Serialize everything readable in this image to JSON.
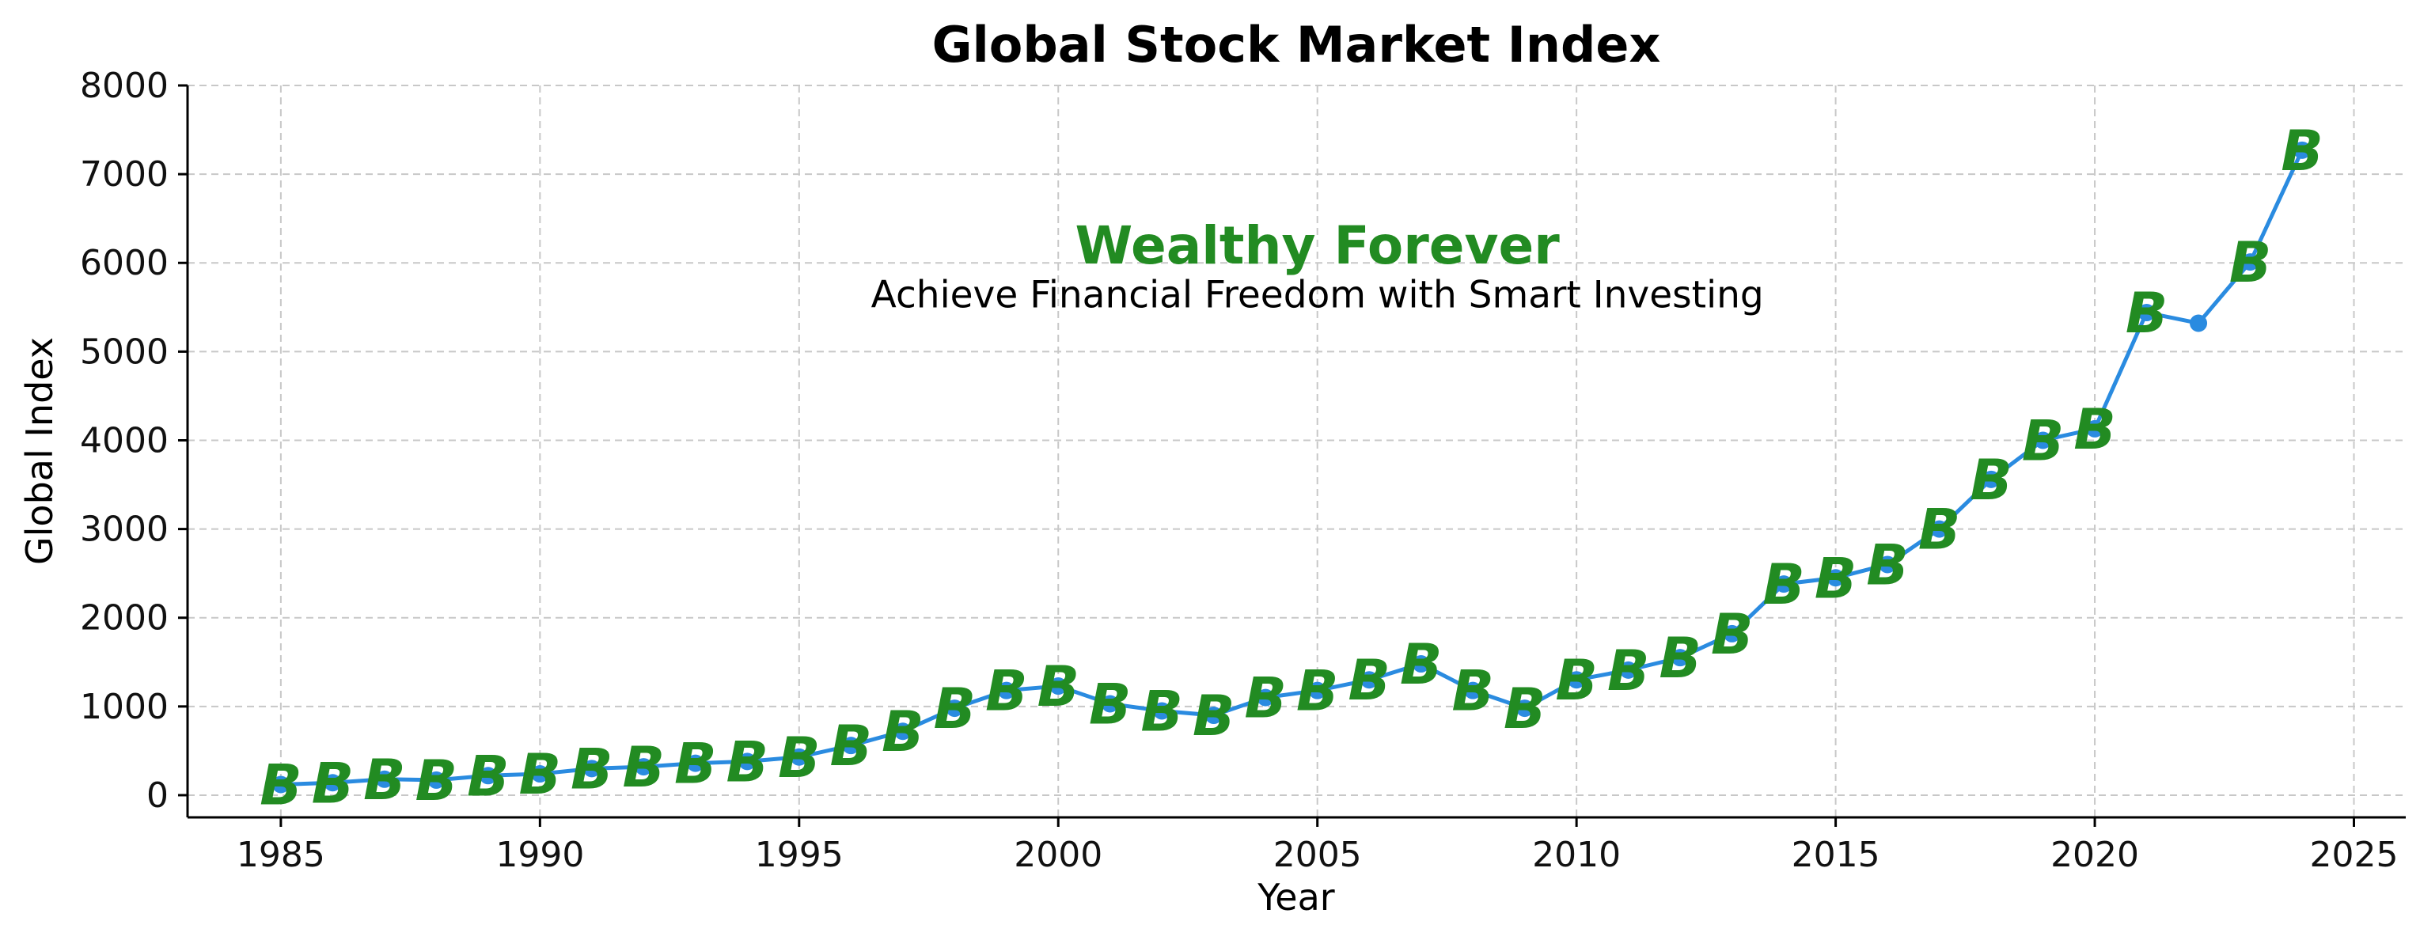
{
  "chart_data": {
    "type": "line",
    "title": "Global Stock Market Index",
    "xlabel": "Year",
    "ylabel": "Global Index",
    "xlim": [
      1983.2,
      2026
    ],
    "ylim": [
      -250,
      8000
    ],
    "xticks": [
      1985,
      1990,
      1995,
      2000,
      2005,
      2010,
      2015,
      2020,
      2025
    ],
    "yticks": [
      0,
      1000,
      2000,
      3000,
      4000,
      5000,
      6000,
      7000,
      8000
    ],
    "grid": true,
    "line_color": "#2a8be0",
    "marker_color": "#2a8be0",
    "accent_color": "#228b22",
    "point_marker_text": "B",
    "annotation": {
      "title": "Wealthy Forever",
      "subtitle": "Achieve Financial Freedom with Smart Investing",
      "x": 2005,
      "y": 6200,
      "subtitle_y": 5650
    },
    "series": [
      {
        "x": [
          1985,
          1986,
          1987,
          1988,
          1989,
          1990,
          1991,
          1992,
          1993,
          1994,
          1995,
          1996,
          1997,
          1998,
          1999,
          2000,
          2001,
          2002,
          2003,
          2004,
          2005,
          2006,
          2007,
          2008,
          2009,
          2010,
          2011,
          2012,
          2013,
          2014,
          2015,
          2016,
          2017,
          2018,
          2019,
          2020,
          2021,
          2022,
          2023,
          2024
        ],
        "y": [
          120,
          140,
          180,
          170,
          220,
          240,
          300,
          320,
          360,
          380,
          430,
          560,
          720,
          980,
          1180,
          1230,
          1030,
          950,
          900,
          1100,
          1180,
          1300,
          1480,
          1180,
          980,
          1300,
          1410,
          1550,
          1820,
          2380,
          2450,
          2600,
          3000,
          3560,
          4000,
          4130,
          5440,
          5320,
          6010,
          7270
        ],
        "show_marker_text": [
          true,
          true,
          true,
          true,
          true,
          true,
          true,
          true,
          true,
          true,
          true,
          true,
          true,
          true,
          true,
          true,
          true,
          true,
          true,
          true,
          true,
          true,
          true,
          true,
          true,
          true,
          true,
          true,
          true,
          true,
          true,
          true,
          true,
          true,
          true,
          true,
          true,
          false,
          true,
          true
        ]
      }
    ]
  }
}
